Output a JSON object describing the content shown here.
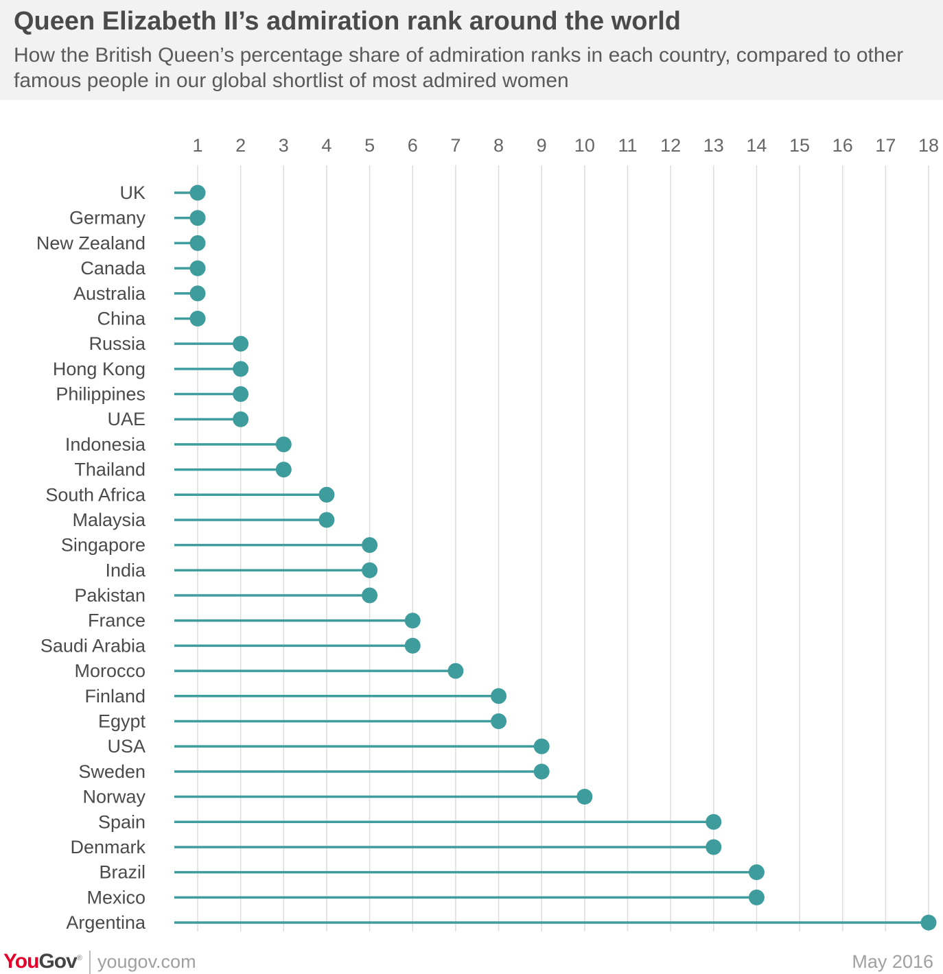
{
  "header": {
    "title": "Queen Elizabeth II’s admiration rank around the world",
    "subtitle": "How the British Queen’s percentage share of admiration ranks in each country, compared to other famous people in our global shortlist of most admired women"
  },
  "footer": {
    "brand_you": "You",
    "brand_gov": "Gov",
    "brand_mark": "®",
    "url": "yougov.com",
    "date": "May 2016"
  },
  "colors": {
    "accent": "#3f9c9c",
    "grid": "#dcdcdc",
    "label": "#4a4a4a",
    "tick": "#666666"
  },
  "chart_data": {
    "type": "lollipop",
    "xlim": [
      1,
      18
    ],
    "x_ticks": [
      1,
      2,
      3,
      4,
      5,
      6,
      7,
      8,
      9,
      10,
      11,
      12,
      13,
      14,
      15,
      16,
      17,
      18
    ],
    "grid": true,
    "x_axis_position": "top",
    "categories": [
      "UK",
      "Germany",
      "New Zealand",
      "Canada",
      "Australia",
      "China",
      "Russia",
      "Hong Kong",
      "Philippines",
      "UAE",
      "Indonesia",
      "Thailand",
      "South Africa",
      "Malaysia",
      "Singapore",
      "India",
      "Pakistan",
      "France",
      "Saudi Arabia",
      "Morocco",
      "Finland",
      "Egypt",
      "USA",
      "Sweden",
      "Norway",
      "Spain",
      "Denmark",
      "Brazil",
      "Mexico",
      "Argentina"
    ],
    "values": [
      1,
      1,
      1,
      1,
      1,
      1,
      2,
      2,
      2,
      2,
      3,
      3,
      4,
      4,
      5,
      5,
      5,
      6,
      6,
      7,
      8,
      8,
      9,
      9,
      10,
      13,
      13,
      14,
      14,
      18
    ]
  }
}
